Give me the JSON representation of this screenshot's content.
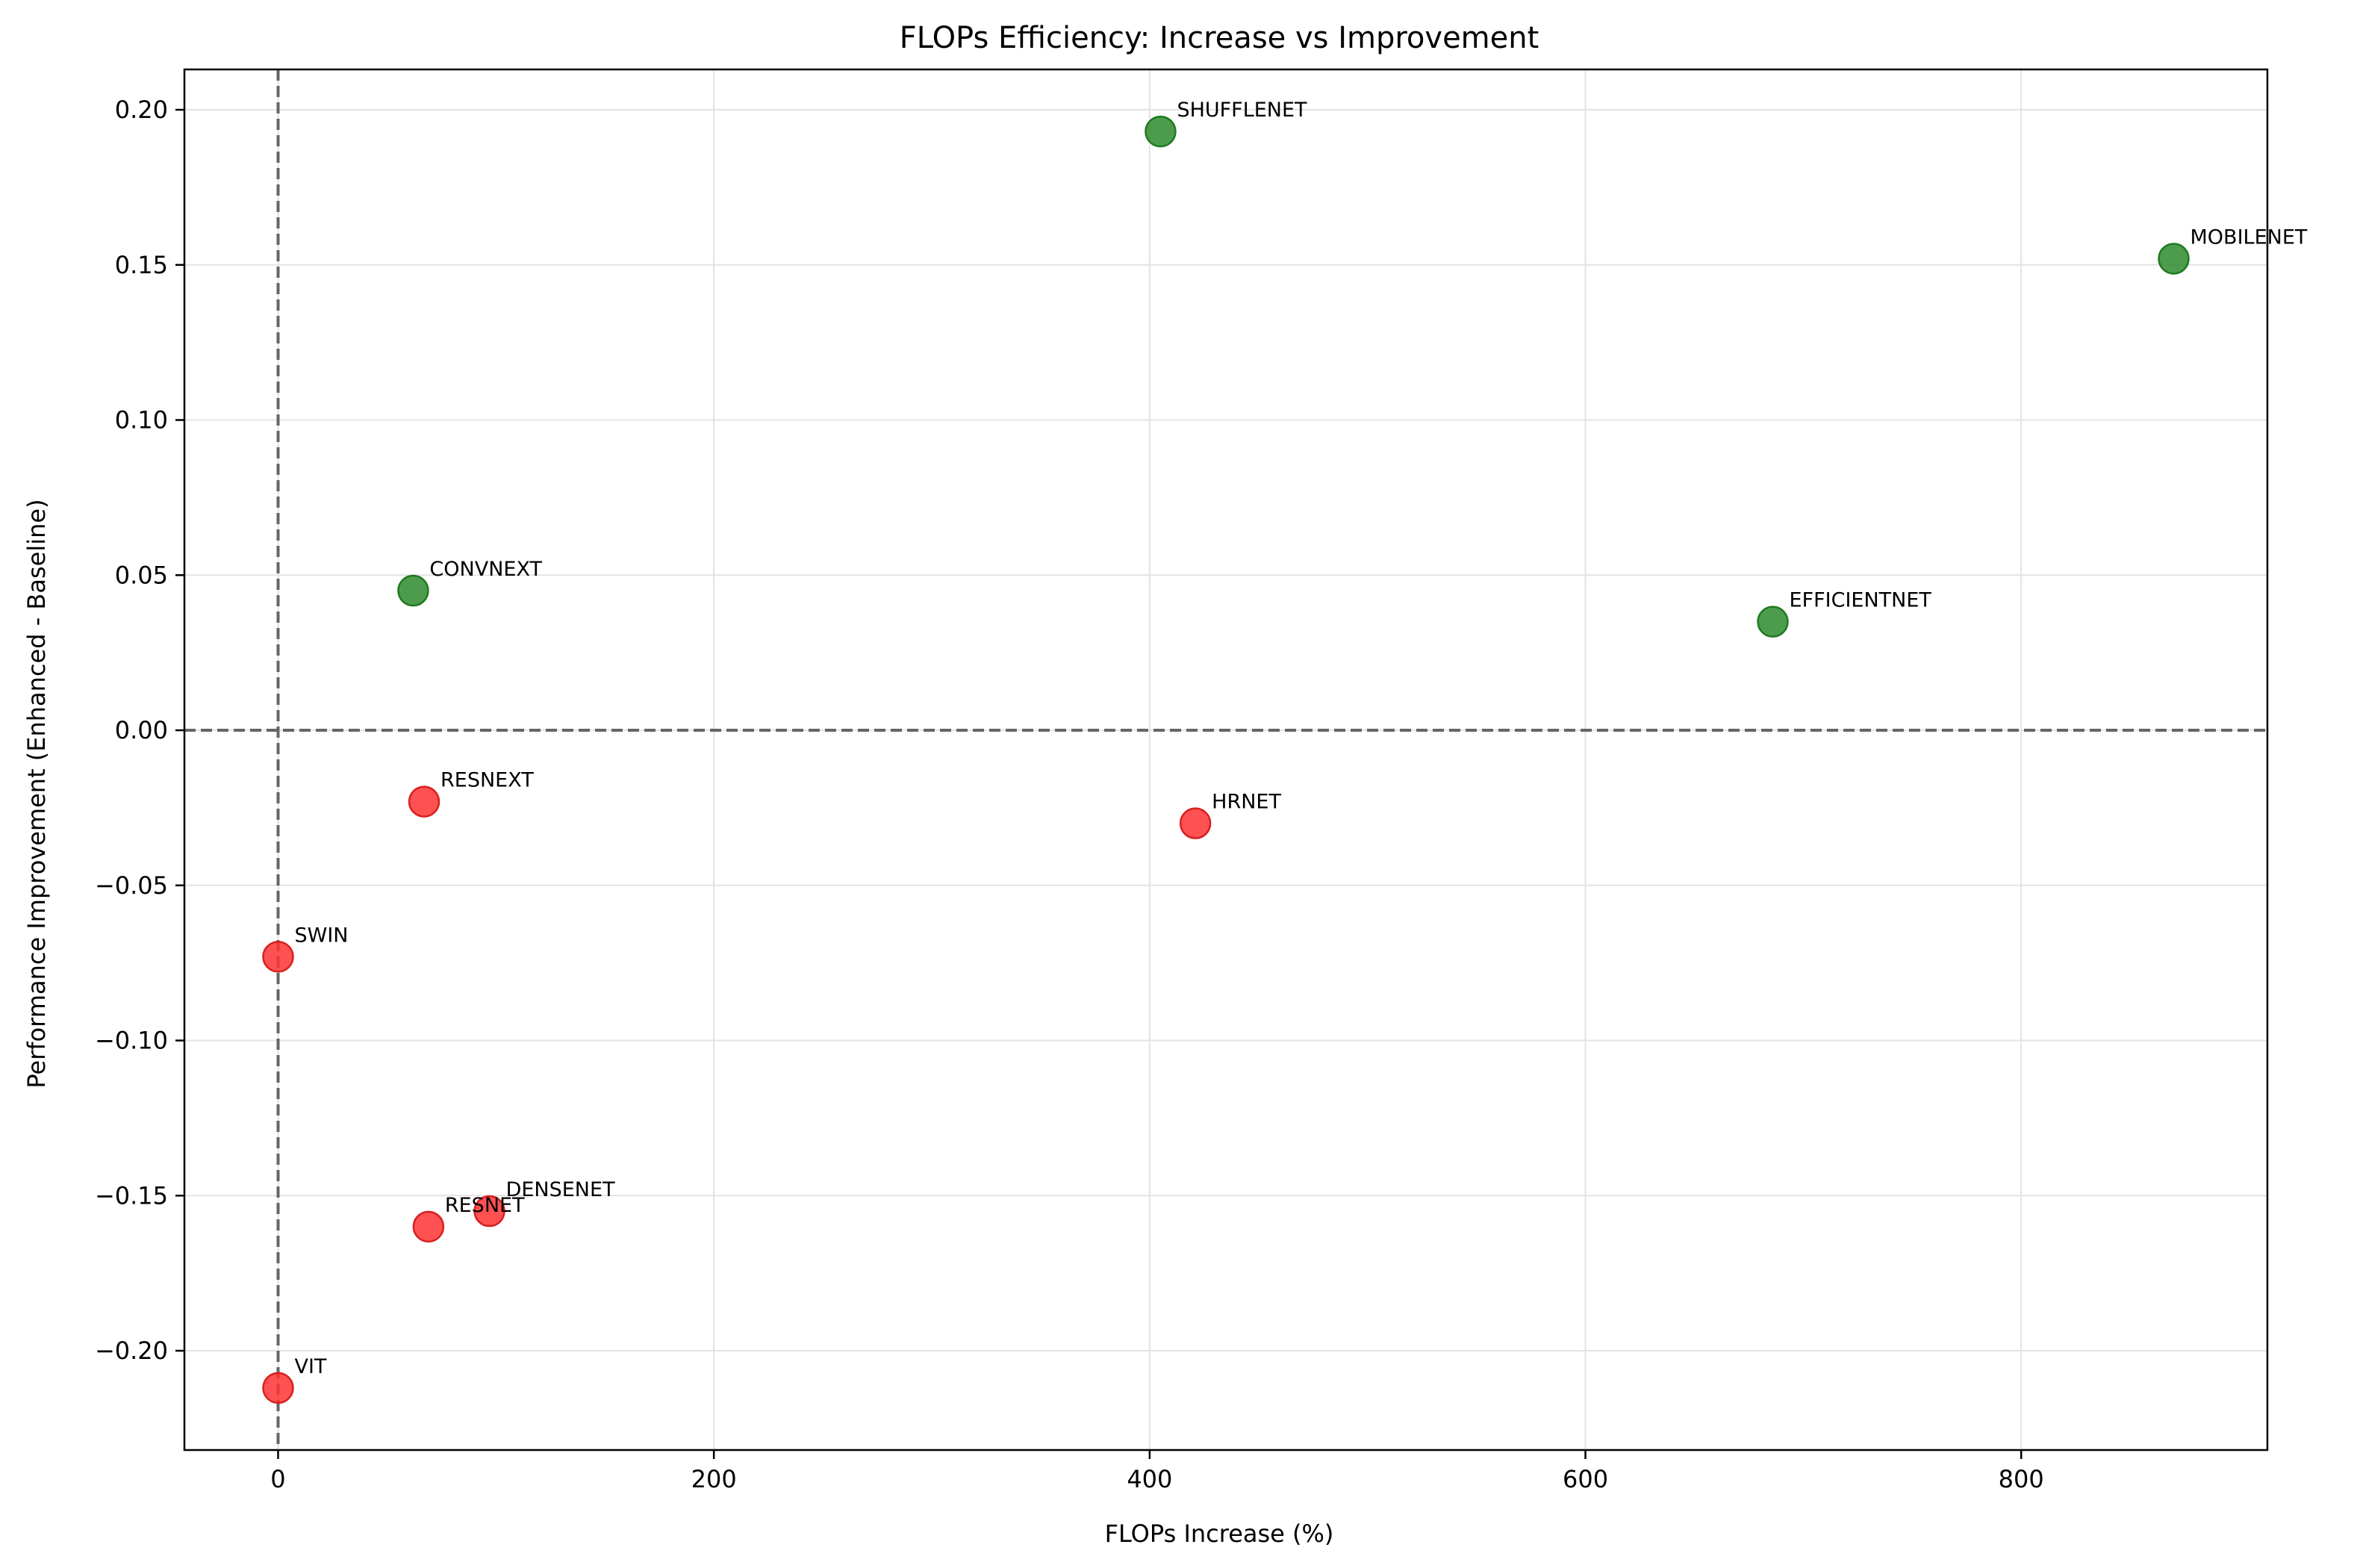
{
  "chart_data": {
    "type": "scatter",
    "title": "FLOPs Efficiency: Increase vs Improvement",
    "xlabel": "FLOPs Increase (%)",
    "ylabel": "Performance Improvement (Enhanced - Baseline)",
    "xlim": [
      -43,
      913
    ],
    "ylim": [
      -0.232,
      0.213
    ],
    "xticks": [
      0,
      200,
      400,
      600,
      800
    ],
    "yticks": [
      -0.2,
      -0.15,
      -0.1,
      -0.05,
      0.0,
      0.05,
      0.1,
      0.15,
      0.2
    ],
    "xtick_labels": [
      "0",
      "200",
      "400",
      "600",
      "800"
    ],
    "ytick_labels": [
      "−0.20",
      "−0.15",
      "−0.10",
      "−0.05",
      "0.00",
      "0.05",
      "0.10",
      "0.15",
      "0.20"
    ],
    "grid": true,
    "reference_lines": {
      "x": 0,
      "y": 0
    },
    "colors": {
      "positive": "#2e8b2e",
      "negative": "#ff3333",
      "positive_edge": "#1f7a1f",
      "negative_edge": "#d62020",
      "refline": "#666666",
      "grid": "#e3e3e3"
    },
    "points": [
      {
        "name": "SHUFFLENET",
        "x": 405,
        "y": 0.193,
        "positive": true
      },
      {
        "name": "MOBILENET",
        "x": 870,
        "y": 0.152,
        "positive": true
      },
      {
        "name": "CONVNEXT",
        "x": 62,
        "y": 0.045,
        "positive": true
      },
      {
        "name": "EFFICIENTNET",
        "x": 686,
        "y": 0.035,
        "positive": true
      },
      {
        "name": "RESNEXT",
        "x": 67,
        "y": -0.023,
        "positive": false
      },
      {
        "name": "HRNET",
        "x": 421,
        "y": -0.03,
        "positive": false
      },
      {
        "name": "SWIN",
        "x": 0,
        "y": -0.073,
        "positive": false
      },
      {
        "name": "DENSENET",
        "x": 97,
        "y": -0.155,
        "positive": false
      },
      {
        "name": "RESNET",
        "x": 69,
        "y": -0.16,
        "positive": false
      },
      {
        "name": "VIT",
        "x": 0,
        "y": -0.212,
        "positive": false
      }
    ]
  }
}
